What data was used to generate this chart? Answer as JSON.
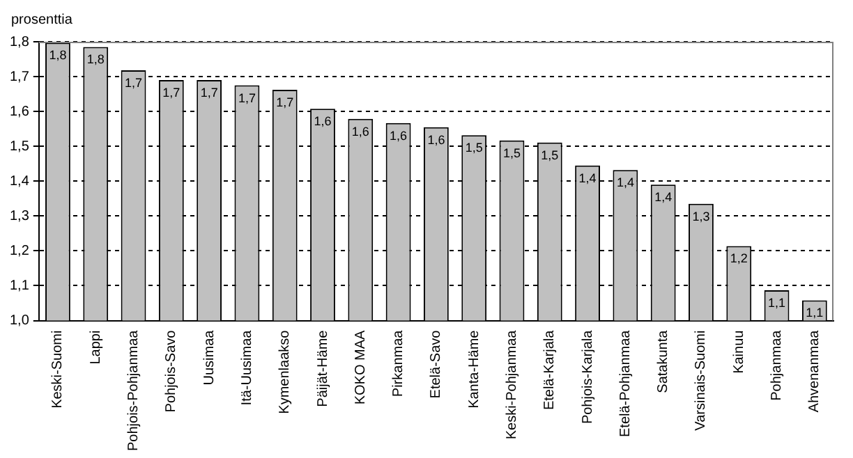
{
  "chart_data": {
    "type": "bar",
    "ylabel": "prosenttia",
    "categories": [
      "Keski-Suomi",
      "Lappi",
      "Pohjois-Pohjanmaa",
      "Pohjois-Savo",
      "Uusimaa",
      "Itä-Uusimaa",
      "Kymenlaakso",
      "Päijät-Häme",
      "KOKO MAA",
      "Pirkanmaa",
      "Etelä-Savo",
      "Kanta-Häme",
      "Keski-Pohjanmaa",
      "Etelä-Karjala",
      "Pohjois-Karjala",
      "Etelä-Pohjanmaa",
      "Satakunta",
      "Varsinais-Suomi",
      "Kainuu",
      "Pohjanmaa",
      "Ahvenanmaa"
    ],
    "values": [
      1.797,
      1.785,
      1.718,
      1.69,
      1.69,
      1.675,
      1.662,
      1.608,
      1.579,
      1.567,
      1.555,
      1.532,
      1.517,
      1.511,
      1.445,
      1.432,
      1.39,
      1.335,
      1.214,
      1.087,
      1.058
    ],
    "value_labels": [
      "1,8",
      "1,8",
      "1,7",
      "1,7",
      "1,7",
      "1,7",
      "1,7",
      "1,6",
      "1,6",
      "1,6",
      "1,6",
      "1,5",
      "1,5",
      "1,5",
      "1,4",
      "1,4",
      "1,4",
      "1,3",
      "1,2",
      "1,1",
      "1,1"
    ],
    "color": "#c0c0c0",
    "ylim": [
      1.0,
      1.8
    ],
    "yticks": [
      {
        "value": 1.0,
        "label": "1,0"
      },
      {
        "value": 1.1,
        "label": "1,1"
      },
      {
        "value": 1.2,
        "label": "1,2"
      },
      {
        "value": 1.3,
        "label": "1,3"
      },
      {
        "value": 1.4,
        "label": "1,4"
      },
      {
        "value": 1.5,
        "label": "1,5"
      },
      {
        "value": 1.6,
        "label": "1,6"
      },
      {
        "value": 1.7,
        "label": "1,7"
      },
      {
        "value": 1.8,
        "label": "1,8"
      }
    ],
    "grid": "y",
    "legend": false
  }
}
